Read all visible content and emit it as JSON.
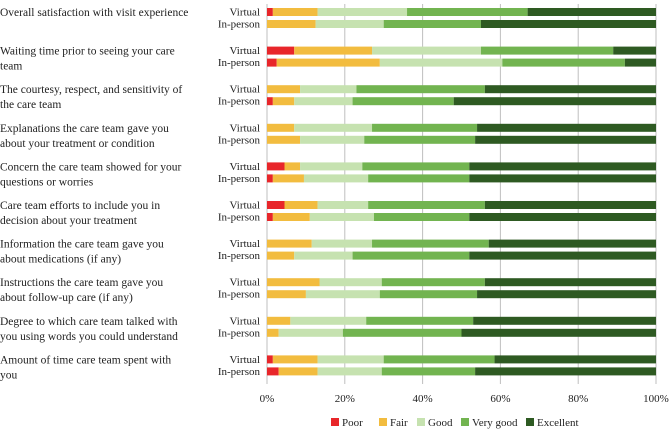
{
  "chart_data": {
    "type": "bar",
    "orientation": "horizontal",
    "stacked": true,
    "xlim": [
      0,
      100
    ],
    "xticks": [
      0,
      20,
      40,
      60,
      80,
      100
    ],
    "xtick_labels": [
      "0%",
      "20%",
      "40%",
      "60%",
      "80%",
      "100%"
    ],
    "grid": true,
    "legend_position": "bottom",
    "row_labels": [
      "Virtual",
      "In-person"
    ],
    "series": [
      {
        "name": "Poor",
        "color": "#e8262a"
      },
      {
        "name": "Fair",
        "color": "#f2bc3f"
      },
      {
        "name": "Good",
        "color": "#c6e2b0"
      },
      {
        "name": "Very good",
        "color": "#72b450"
      },
      {
        "name": "Excellent",
        "color": "#2e5a22"
      }
    ],
    "questions": [
      {
        "label": [
          "Overall satisfaction with visit experience"
        ],
        "virtual": [
          1.5,
          11.5,
          23,
          31,
          33
        ],
        "in_person": [
          0,
          12.5,
          17.5,
          25,
          45
        ]
      },
      {
        "label": [
          "Waiting time prior to seeing your care",
          "team"
        ],
        "virtual": [
          7,
          20,
          28,
          34,
          11
        ],
        "in_person": [
          2.5,
          26.5,
          31.5,
          31.5,
          8
        ]
      },
      {
        "label": [
          "The courtesy, respect, and sensitivity of",
          "the care team"
        ],
        "virtual": [
          0,
          8.5,
          14.5,
          33,
          44
        ],
        "in_person": [
          1.5,
          5.5,
          15,
          26,
          52
        ]
      },
      {
        "label": [
          "Explanations the care team gave you",
          "about your treatment or condition"
        ],
        "virtual": [
          0,
          7,
          20,
          27,
          46
        ],
        "in_person": [
          0,
          8.5,
          16.5,
          28.5,
          46.5
        ]
      },
      {
        "label": [
          "Concern the care team showed for your",
          "questions or worries"
        ],
        "virtual": [
          4.5,
          4,
          16,
          27.5,
          48
        ],
        "in_person": [
          1.5,
          8,
          16.5,
          26,
          48
        ]
      },
      {
        "label": [
          "Care team efforts to include you in",
          "decision about your treatment"
        ],
        "virtual": [
          4.5,
          8.5,
          13,
          30,
          44
        ],
        "in_person": [
          1.5,
          9.5,
          16.5,
          24.5,
          48
        ]
      },
      {
        "label": [
          "Information the care team gave you",
          "about medications (if any)"
        ],
        "virtual": [
          0,
          11.5,
          15.5,
          30,
          43
        ],
        "in_person": [
          0,
          7,
          15,
          30,
          48
        ]
      },
      {
        "label": [
          "Instructions the care team gave you",
          "about follow-up care (if any)"
        ],
        "virtual": [
          0,
          13.5,
          16,
          26.5,
          44
        ],
        "in_person": [
          0,
          10,
          19,
          25,
          46
        ]
      },
      {
        "label": [
          "Degree to which care team talked with",
          "you using words you could understand"
        ],
        "virtual": [
          0,
          6,
          19.5,
          27.5,
          47
        ],
        "in_person": [
          0,
          3,
          16.5,
          30.5,
          50
        ]
      },
      {
        "label": [
          "Amount of time care team spent with",
          "you"
        ],
        "virtual": [
          1.5,
          11.5,
          17,
          28.5,
          41.5
        ],
        "in_person": [
          3,
          10,
          16.5,
          24,
          46.5
        ]
      }
    ]
  }
}
